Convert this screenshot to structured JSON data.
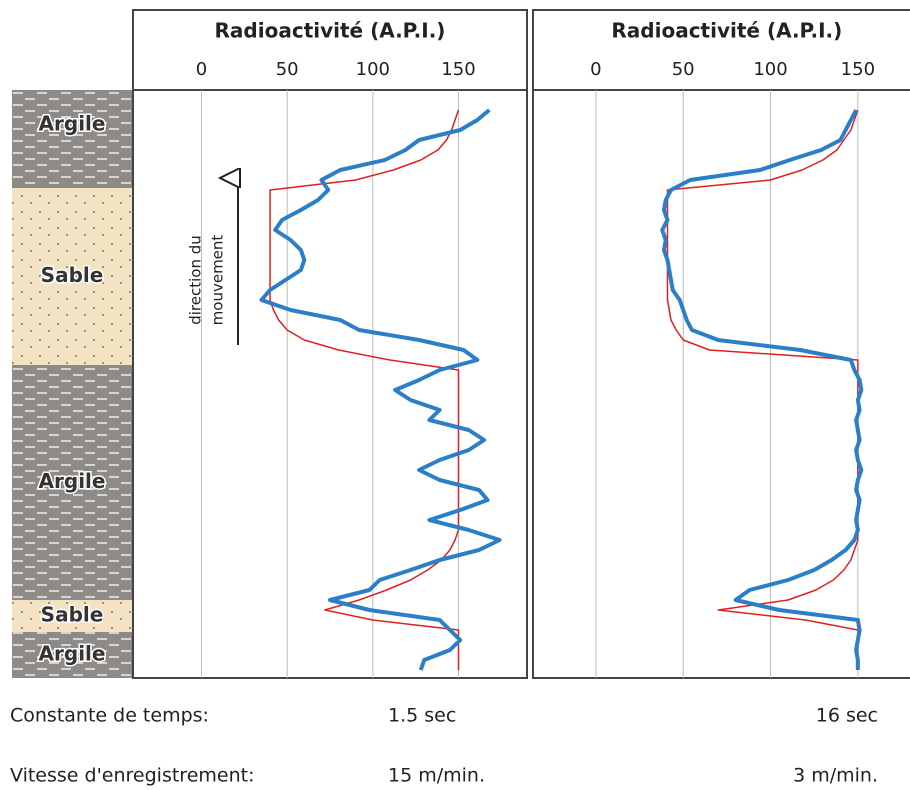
{
  "chart_data": [
    {
      "type": "line",
      "title": "Radioactivité (A.P.I.)",
      "xlim": [
        -40,
        190
      ],
      "xticks": [
        0,
        50,
        100,
        150
      ],
      "grid": true,
      "annotation": [
        "direction du",
        "mouvement"
      ],
      "series": [
        {
          "color": "#e02020",
          "values": [
            150,
            148,
            146,
            143,
            138,
            128,
            112,
            90,
            40,
            40,
            40,
            40,
            40,
            40,
            40,
            40,
            40,
            40,
            40,
            40,
            42,
            45,
            50,
            60,
            80,
            110,
            150,
            150,
            150,
            150,
            150,
            150,
            150,
            150,
            150,
            150,
            150,
            150,
            150,
            150,
            150,
            150,
            150,
            148,
            145,
            140,
            132,
            122,
            108,
            92,
            72,
            100,
            150,
            150,
            150,
            150,
            150
          ]
        },
        {
          "color": "#2a7fc8",
          "values": [
            168,
            161,
            151,
            127,
            119,
            107,
            81,
            70,
            74,
            68,
            58,
            47,
            43,
            52,
            58,
            60,
            58,
            49,
            40,
            35,
            52,
            81,
            92,
            127,
            153,
            161,
            139,
            127,
            113,
            122,
            139,
            133,
            156,
            165,
            156,
            139,
            127,
            139,
            162,
            167,
            151,
            133,
            156,
            174,
            162,
            139,
            122,
            104,
            98,
            75,
            98,
            139,
            145,
            151,
            145,
            130,
            128
          ]
        }
      ]
    },
    {
      "type": "line",
      "title": "Radioactivité (A.P.I.)",
      "xlim": [
        -36,
        181
      ],
      "xticks": [
        0,
        50,
        100,
        150
      ],
      "grid": true,
      "series": [
        {
          "color": "#e02020",
          "values": [
            150,
            148,
            146,
            142,
            138,
            130,
            118,
            100,
            41,
            41,
            41,
            41,
            41,
            41,
            41,
            41,
            41,
            41,
            41,
            41,
            42,
            43,
            46,
            50,
            65,
            150,
            150,
            150,
            150,
            150,
            150,
            150,
            150,
            150,
            150,
            150,
            150,
            150,
            150,
            150,
            150,
            150,
            150,
            150,
            148,
            146,
            142,
            136,
            126,
            110,
            70,
            120,
            150,
            150,
            150,
            150,
            150
          ]
        },
        {
          "color": "#2a7fc8",
          "values": [
            149,
            146,
            143,
            140,
            129,
            111,
            94,
            54,
            43,
            40,
            39,
            41,
            38,
            40,
            39,
            41,
            42,
            43,
            44,
            48,
            50,
            52,
            55,
            70,
            117,
            146,
            148,
            151,
            152,
            150,
            151,
            149,
            150,
            151,
            149,
            150,
            152,
            150,
            149,
            151,
            150,
            149,
            150,
            148,
            143,
            135,
            125,
            110,
            88,
            80,
            105,
            150,
            151,
            150,
            149,
            150,
            150
          ]
        }
      ]
    }
  ],
  "lithology": [
    "Argile",
    "Sable",
    "Argile",
    "Sable",
    "Argile"
  ],
  "footer": {
    "rows": [
      [
        "Constante de temps:",
        "1.5 sec",
        "16 sec"
      ],
      [
        "Vitesse d'enregistrement:",
        "15 m/min.",
        "3 m/min."
      ]
    ]
  }
}
